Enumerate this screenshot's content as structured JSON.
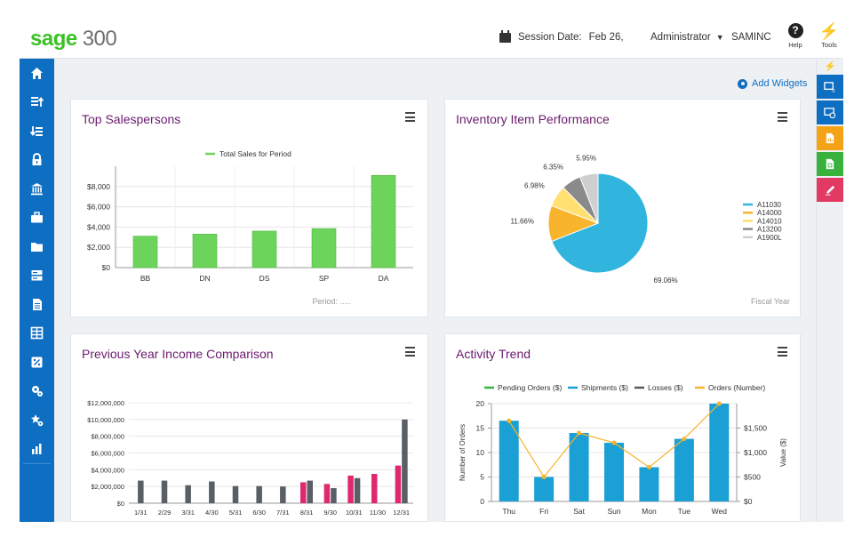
{
  "header": {
    "logo_brand": "sage",
    "logo_version": "300",
    "session_label": "Session Date:",
    "session_date": "Feb 26,",
    "user": "Administrator",
    "company": "SAMINC",
    "help_label": "Help",
    "tools_label": "Tools"
  },
  "left_nav": {
    "items": [
      "home-icon",
      "ledger-up-icon",
      "ledger-down-icon",
      "lock-icon",
      "bank-icon",
      "briefcase-icon",
      "folder-icon",
      "server-icon",
      "document-icon",
      "table-icon",
      "percent-icon",
      "gears-icon",
      "star-gear-icon",
      "bar-chart-icon"
    ]
  },
  "right_bar": {
    "items": [
      {
        "icon": "screen-icon",
        "color": "#0e6ec2",
        "badge": "0"
      },
      {
        "icon": "screen-clock-icon",
        "color": "#0e6ec2"
      },
      {
        "icon": "report-icon",
        "color": "#f5a316"
      },
      {
        "icon": "sheet-icon",
        "color": "#38b23d"
      },
      {
        "icon": "pen-icon",
        "color": "#e23a62"
      }
    ]
  },
  "add_widgets": "Add Widgets",
  "widgets": {
    "salespersons": {
      "title": "Top Salespersons",
      "footnote": "Period: ....."
    },
    "inventory": {
      "title": "Inventory Item Performance",
      "footnote": "Fiscal Year"
    },
    "income": {
      "title": "Previous Year Income Comparison"
    },
    "activity": {
      "title": "Activity Trend"
    }
  },
  "chart_data": [
    {
      "type": "bar",
      "title": "Top Salespersons",
      "categories": [
        "BB",
        "DN",
        "DS",
        "SP",
        "DA"
      ],
      "series": [
        {
          "name": "Total Sales for Period",
          "values": [
            3100,
            3300,
            3600,
            3850,
            9100
          ],
          "color": "#6cd35b"
        }
      ],
      "y_ticks": [
        "$0",
        "$2,000",
        "$4,000",
        "$6,000",
        "$8,000"
      ],
      "ylim": [
        0,
        10000
      ],
      "grid": true
    },
    {
      "type": "pie",
      "title": "Inventory Item Performance",
      "slices": [
        {
          "label": "A11030",
          "value": 69.06,
          "text": "69.06%",
          "color": "#31b4de"
        },
        {
          "label": "A14000",
          "value": 11.66,
          "text": "11.66%",
          "color": "#f7b42c"
        },
        {
          "label": "A14010",
          "value": 6.98,
          "text": "6.98%",
          "color": "#ffe070"
        },
        {
          "label": "A13200",
          "value": 6.35,
          "text": "6.35%",
          "color": "#8a8a8a"
        },
        {
          "label": "A1900L",
          "value": 5.95,
          "text": "5.95%",
          "color": "#cfcfcf"
        }
      ],
      "legend": "right"
    },
    {
      "type": "bar",
      "title": "Previous Year Income Comparison",
      "categories": [
        "1/31",
        "2/29",
        "3/31",
        "4/30",
        "5/31",
        "6/30",
        "7/31",
        "8/31",
        "9/30",
        "10/31",
        "11/30",
        "12/31"
      ],
      "series": [
        {
          "name": "",
          "color": "#e0286e",
          "values": [
            null,
            null,
            null,
            null,
            null,
            null,
            null,
            2500000,
            2300000,
            3300000,
            3500000,
            4500000
          ]
        },
        {
          "name": "",
          "color": "#5a5e66",
          "values": [
            2700000,
            2700000,
            2150000,
            2600000,
            2050000,
            2050000,
            2000000,
            2700000,
            1800000,
            3000000,
            null,
            10000000
          ]
        }
      ],
      "y_ticks": [
        "$0",
        "$2,000,000",
        "$4,000,000",
        "$6,000,000",
        "$8,000,000",
        "$10,000,000",
        "$12,000,000"
      ],
      "ylim": [
        0,
        12000000
      ],
      "grid": true
    },
    {
      "type": "bar",
      "title": "Activity Trend",
      "categories": [
        "Thu",
        "Fri",
        "Sat",
        "Sun",
        "Mon",
        "Tue",
        "Wed"
      ],
      "legend": [
        {
          "name": "Pending Orders ($)",
          "color": "#38b23d"
        },
        {
          "name": "Shipments ($)",
          "color": "#1aa0d4"
        },
        {
          "name": "Losses ($)",
          "color": "#555a62"
        },
        {
          "name": "Orders (Number)",
          "color": "#f7b42c"
        }
      ],
      "series": [
        {
          "name": "Shipments ($)",
          "values": [
            16.5,
            5,
            14,
            12,
            7,
            12.8,
            20
          ],
          "color": "#1aa0d4"
        },
        {
          "name": "Orders (Number)",
          "values": [
            16.5,
            5,
            14,
            12,
            7,
            12.8,
            20
          ],
          "color": "#f7b42c"
        }
      ],
      "y_left_label": "Number of Orders",
      "y_left_ticks": [
        "0",
        "5",
        "10",
        "15",
        "20"
      ],
      "y_right_label": "Value ($)",
      "y_right_ticks": [
        "$0",
        "$500",
        "$1,000",
        "$1,500"
      ],
      "ylim": [
        0,
        20
      ]
    }
  ]
}
